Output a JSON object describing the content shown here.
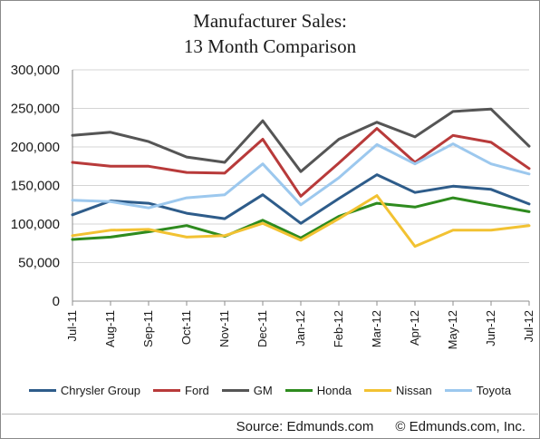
{
  "chart_data": {
    "type": "line",
    "title_line1": "Manufacturer Sales:",
    "title_line2": "13 Month Comparison",
    "categories": [
      "Jul-11",
      "Aug-11",
      "Sep-11",
      "Oct-11",
      "Nov-11",
      "Dec-11",
      "Jan-12",
      "Feb-12",
      "Mar-12",
      "Apr-12",
      "May-12",
      "Jun-12",
      "Jul-12"
    ],
    "yticks": [
      "0",
      "50,000",
      "100,000",
      "150,000",
      "200,000",
      "250,000",
      "300,000"
    ],
    "ylim": [
      0,
      300000
    ],
    "grid": true,
    "legend_position": "bottom",
    "series": [
      {
        "name": "Chrysler Group",
        "color": "#2E5C8A",
        "values": [
          112000,
          130000,
          127000,
          114000,
          107000,
          138000,
          101000,
          133000,
          164000,
          141000,
          149000,
          145000,
          126000
        ]
      },
      {
        "name": "Ford",
        "color": "#B83A3A",
        "values": [
          180000,
          175000,
          175000,
          167000,
          166000,
          210000,
          136000,
          179000,
          224000,
          180000,
          215000,
          206000,
          172000
        ]
      },
      {
        "name": "GM",
        "color": "#555555",
        "values": [
          215000,
          219000,
          207000,
          187000,
          180000,
          234000,
          168000,
          210000,
          232000,
          213000,
          246000,
          249000,
          201000
        ]
      },
      {
        "name": "Honda",
        "color": "#2E8B1E",
        "values": [
          80000,
          83000,
          90000,
          98000,
          84000,
          105000,
          82000,
          110000,
          127000,
          122000,
          134000,
          125000,
          116000
        ]
      },
      {
        "name": "Nissan",
        "color": "#F2C232",
        "values": [
          85000,
          92000,
          93000,
          83000,
          85000,
          101000,
          79000,
          107000,
          137000,
          71000,
          92000,
          92000,
          98000
        ]
      },
      {
        "name": "Toyota",
        "color": "#9CC8EE",
        "values": [
          131000,
          129000,
          121000,
          134000,
          138000,
          178000,
          125000,
          160000,
          203000,
          178000,
          204000,
          178000,
          165000
        ]
      }
    ]
  },
  "footer": {
    "source": "Source: Edmunds.com",
    "copyright": "© Edmunds.com, Inc."
  }
}
